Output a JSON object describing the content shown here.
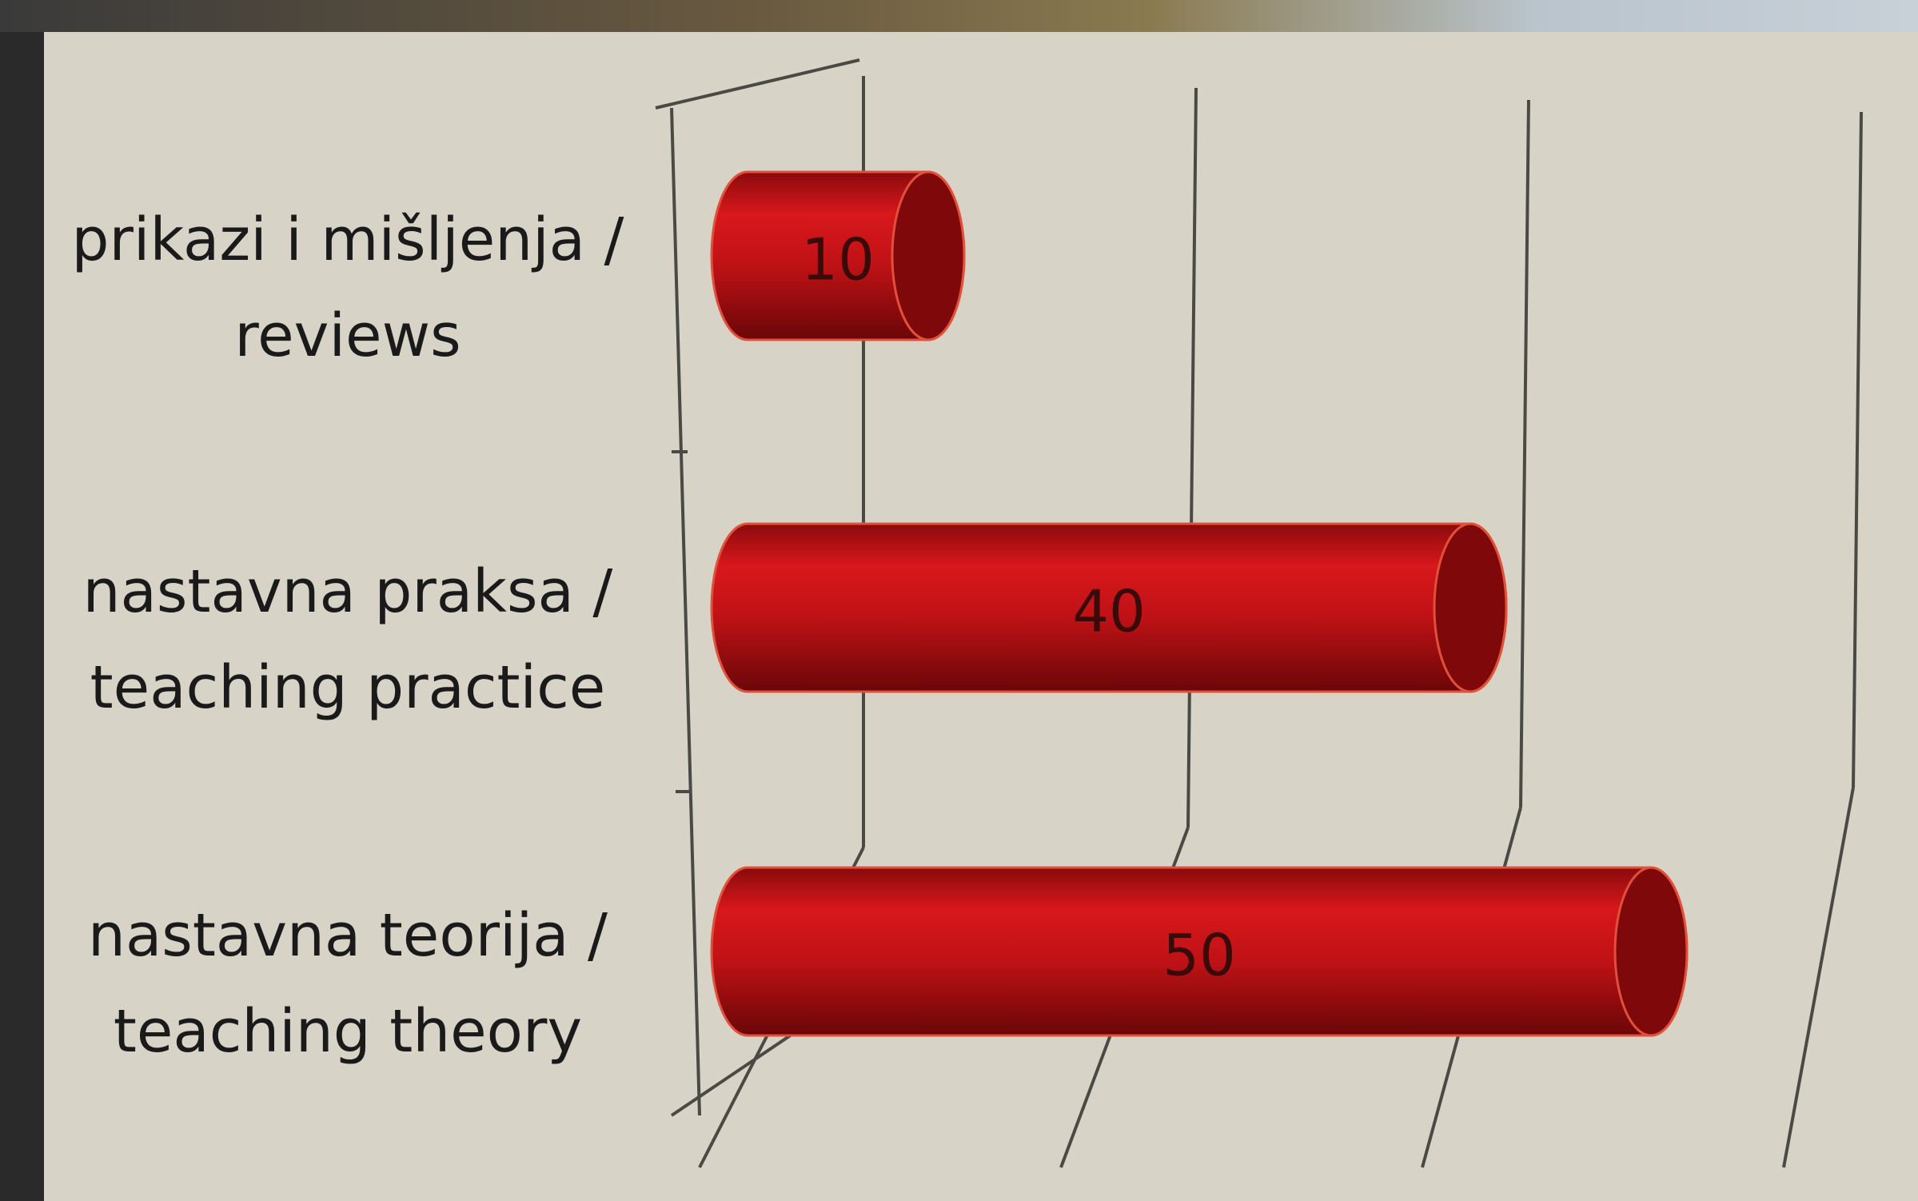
{
  "chart_data": {
    "type": "bar3d",
    "categories": [
      "prikazi i mišljenja / reviews",
      "nastavna praksa / teaching practice",
      "nastavna teorija / teaching theory"
    ],
    "values": [
      10,
      40,
      50
    ],
    "color": "#c81418",
    "xlim": [
      0,
      60
    ],
    "xticks": [
      0,
      20,
      40,
      60
    ],
    "grid": true
  }
}
